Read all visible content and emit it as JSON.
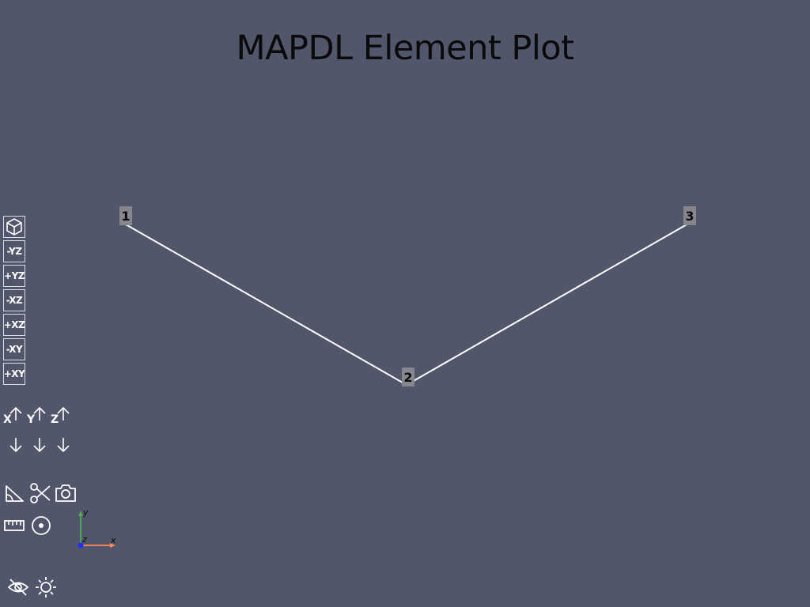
{
  "title": "MAPDL Element Plot",
  "scene": {
    "background": "#52566b",
    "line_color": "#ffffff",
    "nodes": [
      {
        "label": "1"
      },
      {
        "label": "2"
      },
      {
        "label": "3"
      }
    ]
  },
  "view_buttons": [
    {
      "label": "",
      "icon": "isometric-cube-icon"
    },
    {
      "label": "-YZ"
    },
    {
      "label": "+YZ"
    },
    {
      "label": "-XZ"
    },
    {
      "label": "+XZ"
    },
    {
      "label": "-XY"
    },
    {
      "label": "+XY"
    }
  ],
  "axis_controls": {
    "x_label": "X",
    "y_label": "Y",
    "z_label": "Z"
  },
  "tools": [
    {
      "icon": "angle-measure-icon"
    },
    {
      "icon": "scissors-icon"
    },
    {
      "icon": "camera-icon"
    },
    {
      "icon": "ruler-icon"
    },
    {
      "icon": "target-icon"
    },
    {
      "icon": "eye-off-icon"
    },
    {
      "icon": "brightness-icon"
    }
  ],
  "triad": {
    "x": "x",
    "y": "y",
    "z": "z",
    "x_color": "#ff8c5a",
    "y_color": "#4caf50",
    "z_color": "#1e2cff"
  }
}
